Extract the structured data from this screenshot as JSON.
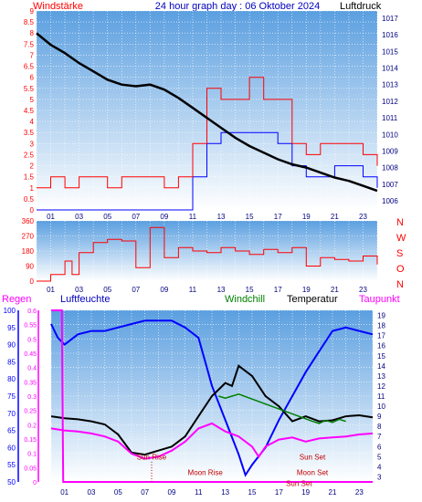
{
  "header": {
    "left": "Windstärke",
    "center": "24 hour graph day : 06 Oktober 2024",
    "right": "Luftdruck"
  },
  "colors": {
    "wind": "#ff0000",
    "gust": "#0000ff",
    "pressure": "#000000",
    "direction": "#ff0000",
    "humidity": "#0000ff",
    "temperature": "#000000",
    "dewpoint": "#ff00ff",
    "windchill": "#008000",
    "rain": "#ff00ff",
    "axis_left": "#ff0000",
    "axis_right": "#000080",
    "panel_top": "#5b9fe0",
    "panel_bottom": "#ffffff"
  },
  "chart_data": [
    {
      "type": "line",
      "panel": "wind_pressure",
      "x_ticks": [
        "01",
        "03",
        "05",
        "07",
        "09",
        "11",
        "13",
        "15",
        "17",
        "19",
        "21",
        "23"
      ],
      "xlim": [
        0,
        24
      ],
      "ylabel_left": "Windstärke",
      "ylabel_right": "Luftdruck",
      "y_left_ticks": [
        "0",
        "0.5",
        "1",
        "1.5",
        "2",
        "2.5",
        "3",
        "3.5",
        "4",
        "4.5",
        "5",
        "5.5",
        "6",
        "6.5",
        "7",
        "7.5",
        "8",
        "8.5",
        "9"
      ],
      "ylim_left": [
        0,
        9
      ],
      "y_right_ticks": [
        "1006",
        "1007",
        "1008",
        "1009",
        "1010",
        "1011",
        "1012",
        "1013",
        "1014",
        "1015",
        "1016",
        "1017"
      ],
      "ylim_right": [
        1006,
        1017
      ],
      "series": [
        {
          "name": "Luftdruck",
          "axis": "right",
          "x": [
            0,
            1,
            2,
            3,
            4,
            5,
            6,
            7,
            8,
            9,
            10,
            11,
            12,
            13,
            14,
            15,
            16,
            17,
            18,
            19,
            20,
            21,
            22,
            23,
            24
          ],
          "y": [
            1016.1,
            1015.4,
            1014.9,
            1014.3,
            1013.8,
            1013.3,
            1013.0,
            1012.9,
            1013.0,
            1012.7,
            1012.2,
            1011.6,
            1011.0,
            1010.4,
            1009.8,
            1009.3,
            1008.9,
            1008.5,
            1008.2,
            1008.0,
            1007.7,
            1007.4,
            1007.2,
            1006.9,
            1006.6
          ]
        },
        {
          "name": "Windstärke",
          "axis": "left",
          "x": [
            0,
            1,
            2,
            3,
            4,
            5,
            6,
            7,
            8,
            9,
            10,
            11,
            12,
            13,
            14,
            15,
            16,
            17,
            18,
            19,
            20,
            21,
            22,
            23,
            24
          ],
          "y": [
            1,
            1.5,
            1,
            1.5,
            1.5,
            1,
            1.5,
            1.5,
            1.5,
            1,
            1.5,
            3,
            5.5,
            5,
            5,
            6,
            5,
            5,
            3,
            2.5,
            3,
            3,
            3,
            2.5,
            2
          ]
        },
        {
          "name": "Böen",
          "axis": "left",
          "x": [
            0,
            1,
            2,
            3,
            4,
            5,
            6,
            7,
            8,
            9,
            10,
            11,
            12,
            13,
            14,
            15,
            16,
            17,
            18,
            19,
            20,
            21,
            22,
            23,
            24
          ],
          "y": [
            0,
            0,
            0,
            0,
            0,
            0,
            0,
            0,
            0,
            0,
            0,
            1.5,
            3,
            3.5,
            3.5,
            3.5,
            3.5,
            3,
            2,
            1.5,
            1.5,
            2,
            2,
            1.5,
            1
          ]
        }
      ]
    },
    {
      "type": "line",
      "panel": "wind_direction",
      "x_ticks": [
        "01",
        "03",
        "05",
        "07",
        "09",
        "11",
        "13",
        "15",
        "17",
        "19",
        "21",
        "23"
      ],
      "xlim": [
        0,
        24
      ],
      "y_left_ticks": [
        "0",
        "90",
        "180",
        "270",
        "360"
      ],
      "ylim_left": [
        0,
        360
      ],
      "y_right_ticks": [
        "N",
        "W",
        "S",
        "O",
        "N"
      ],
      "series": [
        {
          "name": "Windrichtung",
          "x": [
            0,
            1,
            2,
            2.5,
            3,
            4,
            5,
            6,
            7,
            8,
            9,
            10,
            11,
            12,
            13,
            14,
            15,
            16,
            17,
            18,
            19,
            20,
            21,
            22,
            23,
            24
          ],
          "y": [
            0,
            40,
            120,
            40,
            170,
            230,
            250,
            240,
            80,
            320,
            140,
            200,
            180,
            170,
            200,
            180,
            160,
            190,
            170,
            200,
            90,
            140,
            130,
            120,
            150,
            100
          ]
        }
      ]
    },
    {
      "type": "line",
      "panel": "temp_humidity",
      "x_ticks": [
        "01",
        "03",
        "05",
        "07",
        "09",
        "11",
        "13",
        "15",
        "17",
        "19",
        "21",
        "23"
      ],
      "xlim": [
        0,
        24
      ],
      "labels": {
        "rain": "Regen",
        "humidity": "Luftfeuchte",
        "windchill": "Windchill",
        "temperature": "Temperatur",
        "dewpoint": "Taupunkt"
      },
      "y_rain_ticks": [
        "0",
        "0.05",
        "0.1",
        "0.15",
        "0.2",
        "0.25",
        "0.3",
        "0.35",
        "0.4",
        "0.45",
        "0.5",
        "0.55",
        "0.6"
      ],
      "ylim_rain": [
        0,
        0.6
      ],
      "y_humidity_ticks": [
        "50",
        "55",
        "60",
        "65",
        "70",
        "75",
        "80",
        "85",
        "90",
        "95",
        "100"
      ],
      "ylim_humidity": [
        50,
        100
      ],
      "y_temp_ticks": [
        "3",
        "4",
        "5",
        "6",
        "7",
        "8",
        "9",
        "10",
        "11",
        "12",
        "13",
        "14",
        "15",
        "16",
        "17",
        "18",
        "19"
      ],
      "ylim_temp": [
        2.5,
        19.5
      ],
      "annotations": [
        {
          "text": "Sun Rise",
          "x": 7.5,
          "y_temp": 4.7
        },
        {
          "text": "Moon Rise",
          "x": 11.5,
          "y_temp": 3.2
        },
        {
          "text": "Sun Set",
          "x": 19.5,
          "y_temp": 4.7
        },
        {
          "text": "Moon Set",
          "x": 19.5,
          "y_temp": 3.2
        },
        {
          "text": "Sun Set",
          "x": 18.5,
          "y_temp": 2.1
        }
      ],
      "series": [
        {
          "name": "Luftfeuchte",
          "axis": "humidity",
          "x": [
            0,
            0.5,
            1,
            2,
            3,
            4,
            5,
            6,
            7,
            8,
            9,
            10,
            11,
            11.5,
            12,
            13,
            14,
            14.5,
            15,
            16,
            17,
            18,
            19,
            20,
            21,
            22,
            23,
            24
          ],
          "y": [
            96,
            92,
            90,
            93,
            94,
            94,
            95,
            96,
            97,
            97,
            97,
            95,
            92,
            85,
            78,
            68,
            58,
            52,
            55,
            60,
            68,
            75,
            82,
            88,
            94,
            95,
            94,
            93
          ]
        },
        {
          "name": "Temperatur",
          "axis": "temp",
          "x": [
            0,
            1,
            2,
            3,
            4,
            5,
            6,
            7,
            8,
            9,
            10,
            11,
            12,
            13,
            13.5,
            14,
            14.5,
            15,
            16,
            17,
            18,
            19,
            20,
            21,
            22,
            23,
            24
          ],
          "y": [
            9,
            8.8,
            8.7,
            8.5,
            8.2,
            7.2,
            5.4,
            5.2,
            5.6,
            6,
            7,
            9,
            11,
            12.3,
            12,
            14,
            13.5,
            13,
            11,
            10,
            8.5,
            9,
            8.5,
            8.6,
            9,
            9.1,
            8.9
          ]
        },
        {
          "name": "Taupunkt",
          "axis": "temp",
          "x": [
            0,
            1,
            2,
            3,
            4,
            5,
            6,
            7,
            8,
            9,
            10,
            11,
            12,
            13,
            14,
            15,
            15.5,
            16,
            17,
            18,
            19,
            20,
            21,
            22,
            23,
            24
          ],
          "y": [
            7.8,
            7.6,
            7.5,
            7.3,
            7,
            6.5,
            5.3,
            4.8,
            5,
            5.6,
            6.5,
            7.8,
            8.3,
            7.5,
            7,
            6,
            5,
            6,
            6.7,
            6.9,
            6.5,
            6.8,
            6.9,
            7,
            7.2,
            7.3
          ]
        },
        {
          "name": "Windchill",
          "axis": "temp",
          "x": [
            12.5,
            13,
            13.5,
            14,
            19.5,
            20,
            20.5,
            21,
            21.5,
            22
          ],
          "y": [
            11,
            10.8,
            11,
            11.2,
            8.5,
            8.3,
            8.6,
            8.4,
            8.7,
            8.5
          ]
        },
        {
          "name": "Regen",
          "axis": "rain",
          "x": [
            0,
            0.8,
            0.9,
            24
          ],
          "y": [
            0.6,
            0.6,
            0,
            0
          ]
        }
      ]
    }
  ]
}
